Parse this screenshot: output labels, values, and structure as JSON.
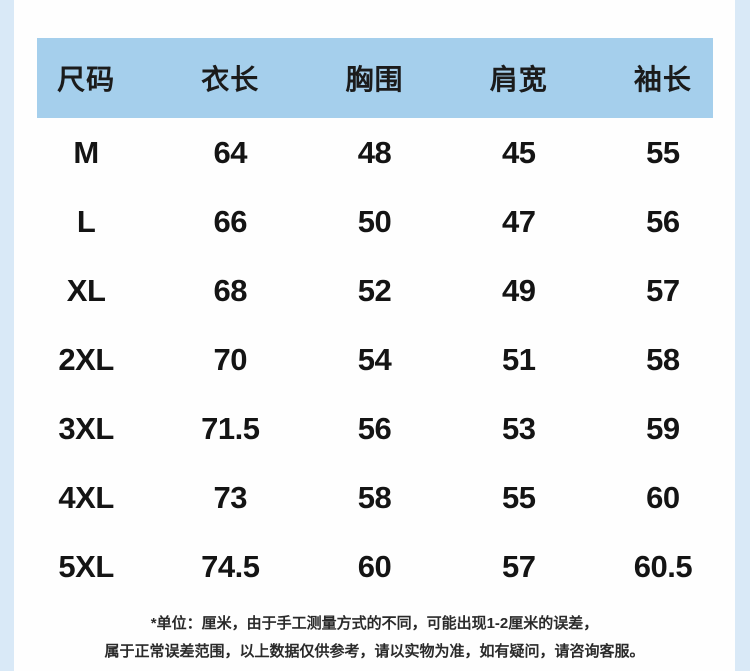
{
  "chart_data": {
    "type": "table",
    "columns": [
      "尺码",
      "衣长",
      "胸围",
      "肩宽",
      "袖长"
    ],
    "rows": [
      [
        "M",
        "64",
        "48",
        "45",
        "55"
      ],
      [
        "L",
        "66",
        "50",
        "47",
        "56"
      ],
      [
        "XL",
        "68",
        "52",
        "49",
        "57"
      ],
      [
        "2XL",
        "70",
        "54",
        "51",
        "58"
      ],
      [
        "3XL",
        "71.5",
        "56",
        "53",
        "59"
      ],
      [
        "4XL",
        "73",
        "58",
        "55",
        "60"
      ],
      [
        "5XL",
        "74.5",
        "60",
        "57",
        "60.5"
      ]
    ],
    "unit": "厘米",
    "layout": "header row on light blue band, 7 data rows, values centered in 5 equal columns"
  },
  "footnote": {
    "line1": "*单位：厘米，由于手工测量方式的不同，可能出现1-2厘米的误差，",
    "line2": "属于正常误差范围，以上数据仅供参考，请以实物为准，如有疑问，请咨询客服。"
  },
  "colors": {
    "header_bg": "#a5cfec",
    "page_edge_bg": "#d9e9f7",
    "card_bg": "#fefefe",
    "text": "#141414"
  }
}
